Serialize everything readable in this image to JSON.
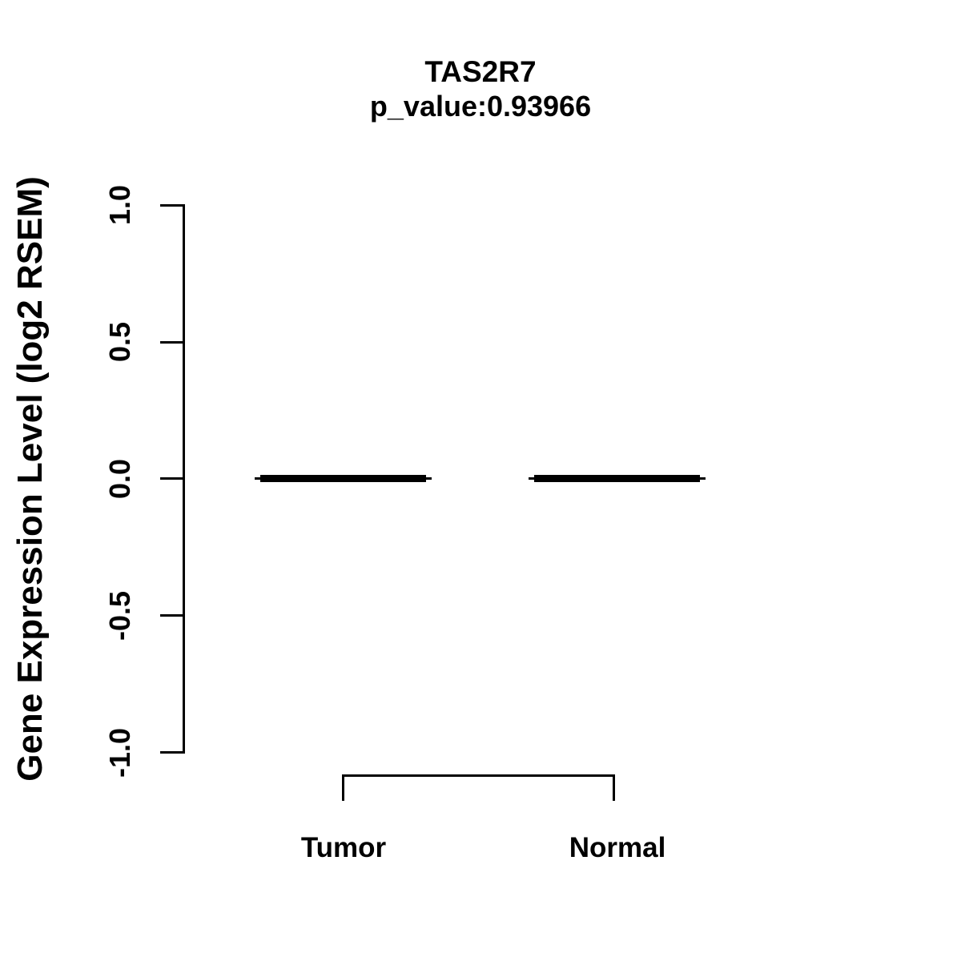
{
  "colors": {
    "ink": "#000000",
    "background": "#ffffff"
  },
  "chart_data": {
    "type": "boxplot",
    "title": "TAS2R7",
    "subtitle": "p_value:0.93966",
    "p_value": 0.93966,
    "gene": "TAS2R7",
    "xlabel": "",
    "ylabel": "Gene Expression Level (log2 RSEM)",
    "categories": [
      "Tumor",
      "Normal"
    ],
    "series": [
      {
        "name": "Tumor",
        "median": 0.0,
        "q1": 0.0,
        "q3": 0.0,
        "whisker_low": 0.0,
        "whisker_high": 0.0
      },
      {
        "name": "Normal",
        "median": 0.0,
        "q1": 0.0,
        "q3": 0.0,
        "whisker_low": 0.0,
        "whisker_high": 0.0
      }
    ],
    "ylim": [
      -1.0,
      1.0
    ],
    "ytick_values": [
      1.0,
      0.5,
      0.0,
      -0.5,
      -1.0
    ],
    "ytick_labels": [
      "1.0",
      "0.5",
      "0.0",
      "-0.5",
      "-1.0"
    ],
    "grid": false,
    "legend_position": "none",
    "annotations": [
      {
        "type": "comparison-bracket",
        "groups": [
          "Tumor",
          "Normal"
        ]
      }
    ]
  }
}
